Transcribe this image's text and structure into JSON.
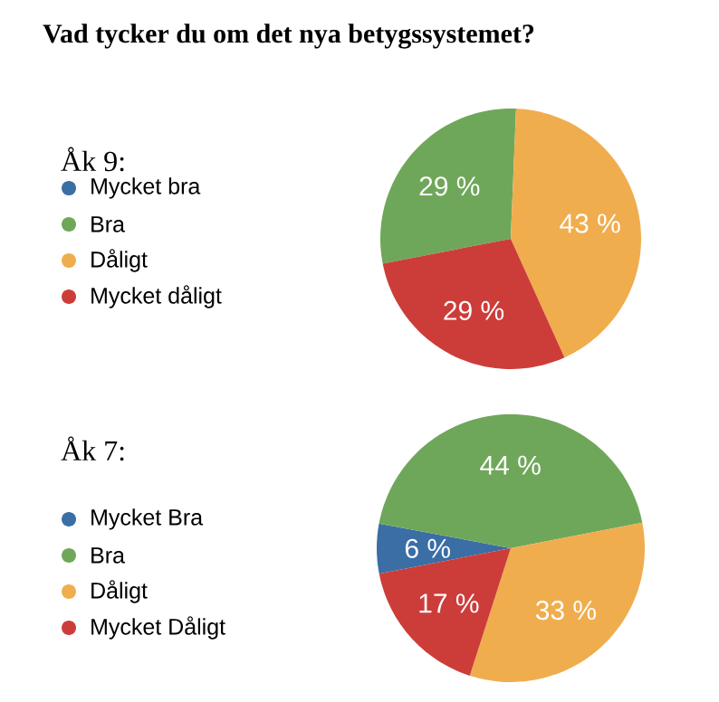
{
  "chart_data": [
    {
      "type": "pie",
      "title": "Vad tycker du om det nya betygssystemet?",
      "legend_title": "Åk 9:",
      "legend": "left",
      "categories": [
        "Mycket bra",
        "Bra",
        "Dåligt",
        "Mycket dåligt"
      ],
      "values": [
        0,
        29,
        43,
        29
      ],
      "value_labels": [
        null,
        "29 %",
        "43 %",
        "29 %"
      ],
      "colors": [
        "#3a6ea5",
        "#6fa75a",
        "#f0ad4e",
        "#cc3d3a"
      ]
    },
    {
      "type": "pie",
      "legend_title": "Åk 7:",
      "legend": "left",
      "categories": [
        "Mycket Bra",
        "Bra",
        "Dåligt",
        "Mycket Dåligt"
      ],
      "values": [
        6,
        44,
        33,
        17
      ],
      "value_labels": [
        "6 %",
        "44 %",
        "33 %",
        "17 %"
      ],
      "colors": [
        "#3a6ea5",
        "#6fa75a",
        "#f0ad4e",
        "#cc3d3a"
      ]
    }
  ]
}
